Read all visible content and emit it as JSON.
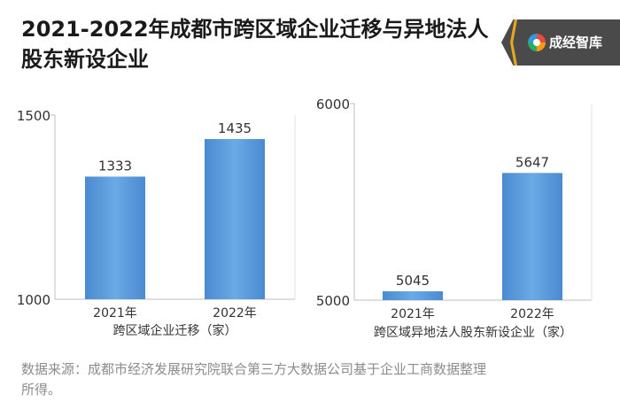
{
  "title": {
    "line1": "2021-2022年成都市跨区域企业迁移与异地法人",
    "line2": "股东新设企业"
  },
  "brand": {
    "name": "成经智库",
    "logo_icon": "rainbow-ring-icon"
  },
  "chart_data": [
    {
      "type": "bar",
      "categories": [
        "2021年",
        "2022年"
      ],
      "values": [
        1333,
        1435
      ],
      "xlabel": "跨区域企业迁移（家）",
      "ylabel": "",
      "ylim": [
        1000,
        1500
      ],
      "yticks": [
        1000,
        1500
      ],
      "grid": false,
      "color": "#5b9bd5"
    },
    {
      "type": "bar",
      "categories": [
        "2021年",
        "2022年"
      ],
      "values": [
        5045,
        5647
      ],
      "xlabel": "跨区域异地法人股东新设企业（家）",
      "ylabel": "",
      "ylim": [
        5000,
        6000
      ],
      "yticks": [
        5000,
        6000
      ],
      "grid": false,
      "color": "#5b9bd5"
    }
  ],
  "source": {
    "line1": "数据来源：成都市经济发展研究院联合第三方大数据公司基于企业工商数据整理",
    "line2": "所得。"
  }
}
